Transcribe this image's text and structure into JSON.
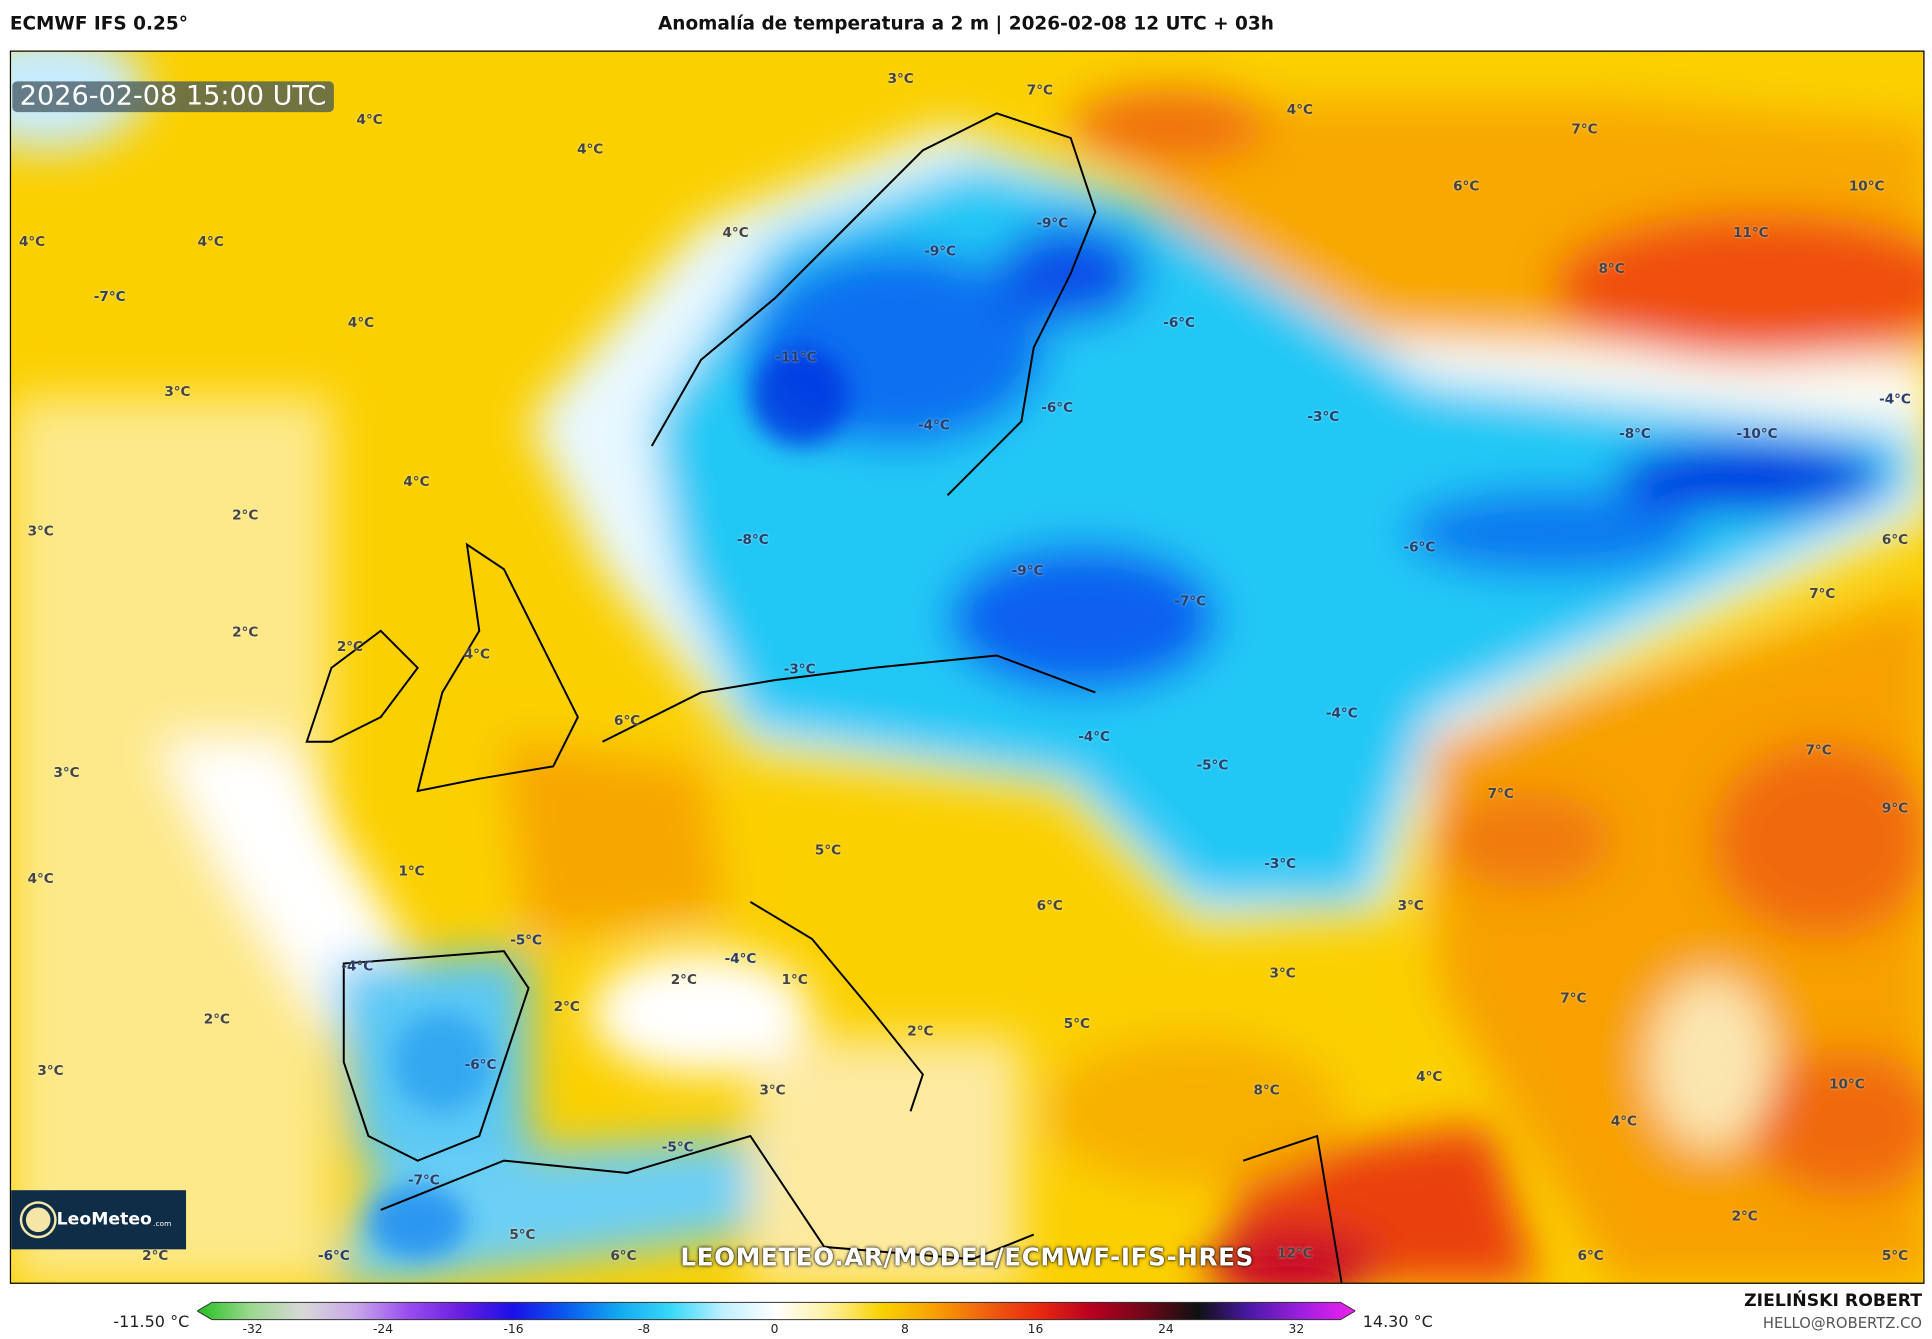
{
  "header": {
    "model": "ECMWF IFS 0.25°",
    "title": "Anomalía de temperatura a 2 m | 2026-02-08 12 UTC + 03h"
  },
  "map": {
    "timestamp": "2026-02-08 15:00 UTC",
    "watermark": "LEOMETEO.AR/MODEL/ECMWF-IFS-HRES",
    "logo": {
      "name": "LeoMeteo",
      "suffix": ".com"
    },
    "labels": [
      "3°C",
      "7°C",
      "4°C",
      "4°C",
      "4°C",
      "7°C",
      "6°C",
      "10°C",
      "4°C",
      "-9°C",
      "-9°C",
      "11°C",
      "4°C",
      "4°C",
      "8°C",
      "-7°C",
      "4°C",
      "-6°C",
      "-11°C",
      "3°C",
      "-6°C",
      "-3°C",
      "-4°C",
      "-4°C",
      "-8°C",
      "-10°C",
      "4°C",
      "3°C",
      "2°C",
      "-8°C",
      "6°C",
      "-6°C",
      "-9°C",
      "-7°C",
      "7°C",
      "2°C",
      "2°C",
      "4°C",
      "-3°C",
      "6°C",
      "-4°C",
      "-4°C",
      "-5°C",
      "3°C",
      "7°C",
      "7°C",
      "9°C",
      "5°C",
      "-3°C",
      "1°C",
      "4°C",
      "6°C",
      "3°C",
      "-5°C",
      "-4°C",
      "-4°C",
      "3°C",
      "2°C",
      "1°C",
      "7°C",
      "2°C",
      "2°C",
      "5°C",
      "2°C",
      "3°C",
      "-6°C",
      "3°C",
      "8°C",
      "4°C",
      "10°C",
      "4°C",
      "-5°C",
      "-7°C",
      "2°C",
      "5°C",
      "2°C",
      "-6°C",
      "6°C",
      "12°C",
      "6°C",
      "5°C"
    ]
  },
  "colorbar": {
    "min_value": "-11.50 °C",
    "max_value": "14.30 °C",
    "ticks": [
      "-32",
      "-24",
      "-16",
      "-8",
      "0",
      "8",
      "16",
      "24",
      "32"
    ],
    "colors": [
      "#22c01e",
      "#9ad88e",
      "#d8d8d8",
      "#c8a8e8",
      "#9a4ef0",
      "#6a1ee0",
      "#1a10e8",
      "#0a5af0",
      "#12a8f0",
      "#38d8f8",
      "#bff0ff",
      "#ffffff",
      "#fff0a0",
      "#f8d200",
      "#f8a000",
      "#f06010",
      "#e82810",
      "#b80020",
      "#700818",
      "#101010",
      "#4a18a8",
      "#a020e0",
      "#f020f0"
    ]
  },
  "credit": {
    "author": "ZIELIŃSKI ROBERT",
    "email": "HELLO@ROBERTZ.CO"
  }
}
